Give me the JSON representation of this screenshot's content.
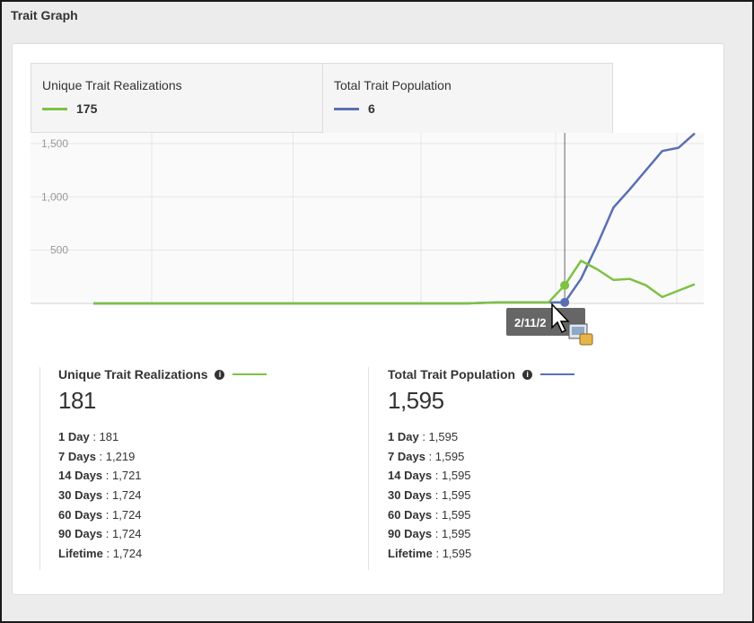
{
  "section_title": "Trait Graph",
  "tabs": [
    {
      "label": "Unique Trait Realizations",
      "value": "175",
      "color": "#7dc243"
    },
    {
      "label": "Total Trait Population",
      "value": "6",
      "color": "#5a6fb3"
    }
  ],
  "tooltip": {
    "text": "2/11/2"
  },
  "chart_data": {
    "type": "line",
    "yticks": [
      500,
      1000,
      1500
    ],
    "ytick_labels": [
      "500",
      "1,000",
      "1,500"
    ],
    "ylim": [
      0,
      1600
    ],
    "grid": true,
    "series": [
      {
        "name": "Unique Trait Realizations",
        "color": "#7dc243",
        "x": [
          0,
          1,
          2,
          3,
          4,
          5,
          6,
          7,
          8,
          9,
          10,
          11,
          12,
          13,
          14,
          15,
          16,
          17,
          18,
          19,
          20,
          21,
          22,
          23,
          24,
          25,
          26,
          27,
          28,
          29,
          30,
          31,
          32,
          33,
          34,
          35,
          36,
          37
        ],
        "values": [
          0,
          0,
          0,
          0,
          0,
          0,
          0,
          0,
          0,
          0,
          0,
          0,
          0,
          0,
          0,
          0,
          0,
          0,
          0,
          0,
          0,
          0,
          0,
          0,
          5,
          10,
          10,
          10,
          10,
          170,
          400,
          320,
          220,
          230,
          170,
          60,
          120,
          180
        ]
      },
      {
        "name": "Total Trait Population",
        "color": "#5a6fb3",
        "x": [
          0,
          1,
          2,
          3,
          4,
          5,
          6,
          7,
          8,
          9,
          10,
          11,
          12,
          13,
          14,
          15,
          16,
          17,
          18,
          19,
          20,
          21,
          22,
          23,
          24,
          25,
          26,
          27,
          28,
          29,
          30,
          31,
          32,
          33,
          34,
          35,
          36,
          37
        ],
        "values": [
          0,
          0,
          0,
          0,
          0,
          0,
          0,
          0,
          0,
          0,
          0,
          0,
          0,
          0,
          0,
          0,
          0,
          0,
          0,
          0,
          0,
          0,
          0,
          0,
          5,
          10,
          10,
          10,
          10,
          10,
          230,
          550,
          900,
          1070,
          1250,
          1430,
          1460,
          1595
        ]
      }
    ],
    "marker_index": 29
  },
  "stats": [
    {
      "title": "Unique Trait Realizations",
      "total": "181",
      "color": "#7dc243",
      "rows": [
        {
          "k": "1 Day",
          "v": "181"
        },
        {
          "k": "7 Days",
          "v": "1,219"
        },
        {
          "k": "14 Days",
          "v": "1,721"
        },
        {
          "k": "30 Days",
          "v": "1,724"
        },
        {
          "k": "60 Days",
          "v": "1,724"
        },
        {
          "k": "90 Days",
          "v": "1,724"
        },
        {
          "k": "Lifetime",
          "v": "1,724"
        }
      ]
    },
    {
      "title": "Total Trait Population",
      "total": "1,595",
      "color": "#5a6fb3",
      "rows": [
        {
          "k": "1 Day",
          "v": "1,595"
        },
        {
          "k": "7 Days",
          "v": "1,595"
        },
        {
          "k": "14 Days",
          "v": "1,595"
        },
        {
          "k": "30 Days",
          "v": "1,595"
        },
        {
          "k": "60 Days",
          "v": "1,595"
        },
        {
          "k": "90 Days",
          "v": "1,595"
        },
        {
          "k": "Lifetime",
          "v": "1,595"
        }
      ]
    }
  ]
}
